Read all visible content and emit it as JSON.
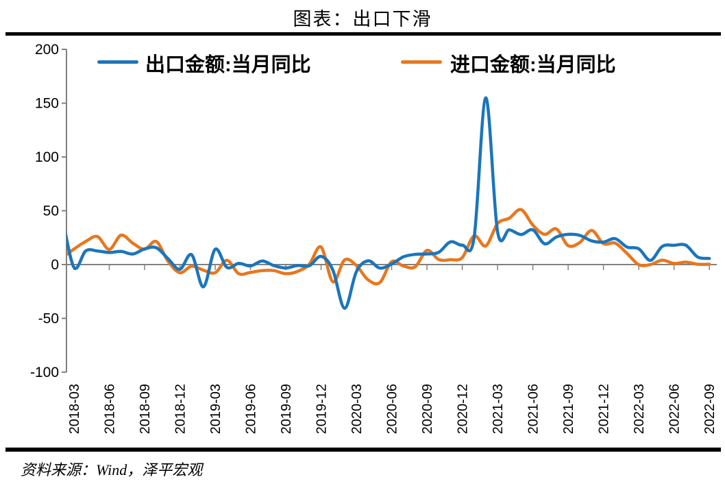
{
  "header": {
    "title": "图表：出口下滑"
  },
  "footer": {
    "source": "资料来源：Wind，泽平宏观"
  },
  "chart_data": {
    "type": "line",
    "smoothed": true,
    "grid": false,
    "legend_position": "top",
    "axis_color": "#808080",
    "tick_label_color": "#000000",
    "ylim": [
      -100,
      200
    ],
    "yticks": [
      200,
      150,
      100,
      50,
      0,
      -50,
      -100
    ],
    "x": [
      "2018-02",
      "2018-03",
      "2018-04",
      "2018-05",
      "2018-06",
      "2018-07",
      "2018-08",
      "2018-09",
      "2018-10",
      "2018-11",
      "2018-12",
      "2019-01",
      "2019-02",
      "2019-03",
      "2019-04",
      "2019-05",
      "2019-06",
      "2019-07",
      "2019-08",
      "2019-09",
      "2019-10",
      "2019-11",
      "2019-12",
      "2020-01",
      "2020-02",
      "2020-03",
      "2020-04",
      "2020-05",
      "2020-06",
      "2020-07",
      "2020-08",
      "2020-09",
      "2020-10",
      "2020-11",
      "2020-12",
      "2021-01",
      "2021-02",
      "2021-03",
      "2021-04",
      "2021-05",
      "2021-06",
      "2021-07",
      "2021-08",
      "2021-09",
      "2021-10",
      "2021-11",
      "2021-12",
      "2022-01",
      "2022-02",
      "2022-03",
      "2022-04",
      "2022-05",
      "2022-06",
      "2022-07",
      "2022-08",
      "2022-09"
    ],
    "x_tick_labels": [
      "2018-03",
      "2018-06",
      "2018-09",
      "2018-12",
      "2019-03",
      "2019-06",
      "2019-09",
      "2019-12",
      "2020-03",
      "2020-06",
      "2020-09",
      "2020-12",
      "2021-03",
      "2021-06",
      "2021-09",
      "2021-12",
      "2022-03",
      "2022-06",
      "2022-09"
    ],
    "series": [
      {
        "name": "出口金额:当月同比",
        "color": "#1B75BC",
        "values": [
          44.5,
          -2.7,
          12.7,
          12.6,
          11.2,
          12.2,
          9.8,
          14.5,
          15.6,
          5.4,
          -4.4,
          9.1,
          -20.7,
          14.2,
          -2.7,
          1.1,
          -1.3,
          3.3,
          -1.0,
          -3.2,
          -0.9,
          -1.1,
          7.6,
          -5.0,
          -40.6,
          -6.6,
          3.5,
          -3.3,
          0.5,
          7.2,
          9.5,
          9.9,
          11.4,
          21.1,
          18.1,
          24.8,
          154.9,
          30.6,
          32.3,
          27.9,
          32.2,
          19.3,
          25.6,
          28.1,
          27.1,
          22.0,
          20.9,
          24.1,
          16.3,
          14.7,
          3.9,
          16.9,
          17.9,
          18.0,
          7.1,
          5.7
        ]
      },
      {
        "name": "进口金额:当月同比",
        "color": "#E8771E",
        "values": [
          6.3,
          14.4,
          21.5,
          26.0,
          14.1,
          27.3,
          19.9,
          14.3,
          21.4,
          3.0,
          -7.6,
          -1.5,
          -5.2,
          -7.6,
          4.0,
          -8.5,
          -7.3,
          -5.6,
          -5.6,
          -8.5,
          -6.4,
          0.3,
          16.3,
          -16.0,
          4.3,
          -0.9,
          -14.2,
          -16.7,
          2.7,
          -1.4,
          -2.1,
          13.2,
          4.7,
          4.5,
          6.5,
          26.6,
          17.3,
          38.1,
          43.1,
          51.1,
          36.7,
          28.1,
          33.1,
          17.6,
          20.6,
          31.7,
          19.5,
          19.9,
          10.4,
          -0.1,
          0.0,
          4.1,
          1.0,
          2.3,
          0.3,
          0.3
        ]
      }
    ]
  }
}
